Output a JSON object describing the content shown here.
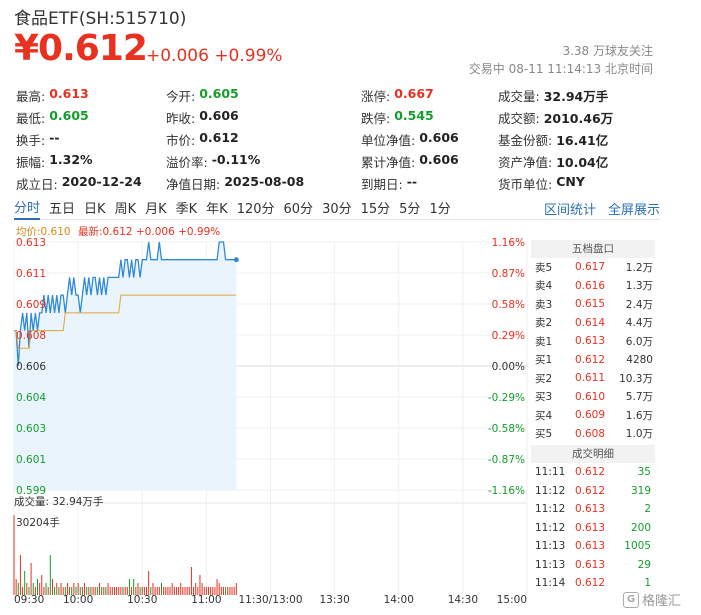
{
  "header": {
    "title": "食品ETF(SH:515710)",
    "price": "¥0.612",
    "change": "+0.006 +0.99%",
    "followers": "3.38 万球友关注",
    "status": "交易中 08-11 11:14:13 北京时间"
  },
  "stats": [
    [
      {
        "k": "最高:",
        "v": "0.613",
        "c": "red"
      },
      {
        "k": "今开:",
        "v": "0.605",
        "c": "green"
      },
      {
        "k": "涨停:",
        "v": "0.667",
        "c": "red"
      },
      {
        "k": "成交量:",
        "v": "32.94万手",
        "c": ""
      }
    ],
    [
      {
        "k": "最低:",
        "v": "0.605",
        "c": "green"
      },
      {
        "k": "昨收:",
        "v": "0.606",
        "c": ""
      },
      {
        "k": "跌停:",
        "v": "0.545",
        "c": "green"
      },
      {
        "k": "成交额:",
        "v": "2010.46万",
        "c": ""
      }
    ],
    [
      {
        "k": "换手:",
        "v": "--",
        "c": ""
      },
      {
        "k": "市价:",
        "v": "0.612",
        "c": ""
      },
      {
        "k": "单位净值:",
        "v": "0.606",
        "c": ""
      },
      {
        "k": "基金份额:",
        "v": "16.41亿",
        "c": ""
      }
    ],
    [
      {
        "k": "振幅:",
        "v": "1.32%",
        "c": ""
      },
      {
        "k": "溢价率:",
        "v": "-0.11%",
        "c": ""
      },
      {
        "k": "累计净值:",
        "v": "0.606",
        "c": ""
      },
      {
        "k": "资产净值:",
        "v": "10.04亿",
        "c": ""
      }
    ],
    [
      {
        "k": "成立日:",
        "v": "2020-12-24",
        "c": ""
      },
      {
        "k": "净值日期:",
        "v": "2025-08-08",
        "c": ""
      },
      {
        "k": "到期日:",
        "v": "--",
        "c": ""
      },
      {
        "k": "货币单位:",
        "v": "CNY",
        "c": ""
      }
    ]
  ],
  "tabs": [
    "分时",
    "五日",
    "日K",
    "周K",
    "月K",
    "季K",
    "年K",
    "120分",
    "60分",
    "30分",
    "15分",
    "5分",
    "1分"
  ],
  "tab_links": [
    "区间统计",
    "全屏展示"
  ],
  "legend": {
    "avg": "均价:0.610",
    "latest": "最新:0.612 +0.006 +0.99%"
  },
  "chart_data": {
    "type": "line",
    "y_ticks": [
      "0.613",
      "0.611",
      "0.609",
      "0.608",
      "0.606",
      "0.604",
      "0.603",
      "0.601",
      "0.599"
    ],
    "pct_ticks": [
      "1.16%",
      "0.87%",
      "0.58%",
      "0.29%",
      "0.00%",
      "-0.29%",
      "-0.58%",
      "-0.87%",
      "-1.16%"
    ],
    "ylim": [
      0.599,
      0.613
    ],
    "prev_close": 0.606,
    "x_ticks": [
      "09:30",
      "10:00",
      "10:30",
      "11:00",
      "11:30/13:00",
      "13:30",
      "14:00",
      "14:30",
      "15:00"
    ],
    "series": [
      {
        "values": [
          0.608,
          0.608,
          0.606,
          0.608,
          0.609,
          0.608,
          0.609,
          0.607,
          0.609,
          0.608,
          0.609,
          0.608,
          0.609,
          0.609,
          0.61,
          0.609,
          0.61,
          0.609,
          0.61,
          0.609,
          0.61,
          0.609,
          0.61,
          0.61,
          0.609,
          0.61,
          0.611,
          0.61,
          0.611,
          0.61,
          0.61,
          0.609,
          0.61,
          0.611,
          0.61,
          0.611,
          0.61,
          0.611,
          0.611,
          0.61,
          0.611,
          0.61,
          0.611,
          0.61,
          0.611,
          0.611,
          0.611,
          0.611,
          0.611,
          0.611,
          0.612,
          0.611,
          0.612,
          0.612,
          0.611,
          0.612,
          0.611,
          0.612,
          0.612,
          0.611,
          0.612,
          0.612,
          0.612,
          0.613,
          0.612,
          0.612,
          0.612,
          0.612,
          0.613,
          0.612,
          0.612,
          0.612,
          0.612,
          0.612,
          0.612,
          0.612,
          0.612,
          0.612,
          0.612,
          0.612,
          0.612,
          0.612,
          0.612,
          0.612,
          0.612,
          0.612,
          0.612,
          0.612,
          0.612,
          0.612,
          0.612,
          0.612,
          0.612,
          0.612,
          0.612,
          0.612,
          0.613,
          0.613,
          0.613,
          0.612,
          0.612,
          0.612,
          0.612,
          0.612,
          0.612
        ]
      },
      {
        "values": [
          0.608,
          0.608,
          0.607,
          0.607,
          0.607,
          0.607,
          0.607,
          0.607,
          0.608,
          0.608,
          0.608,
          0.608,
          0.608,
          0.608,
          0.608,
          0.608,
          0.608,
          0.608,
          0.608,
          0.608,
          0.608,
          0.608,
          0.608,
          0.608,
          0.609,
          0.609,
          0.609,
          0.609,
          0.609,
          0.609,
          0.609,
          0.609,
          0.609,
          0.609,
          0.609,
          0.609,
          0.609,
          0.609,
          0.609,
          0.609,
          0.609,
          0.609,
          0.609,
          0.609,
          0.609,
          0.609,
          0.609,
          0.609,
          0.609,
          0.609,
          0.61,
          0.61,
          0.61,
          0.61,
          0.61,
          0.61,
          0.61,
          0.61,
          0.61,
          0.61,
          0.61,
          0.61,
          0.61,
          0.61,
          0.61,
          0.61,
          0.61,
          0.61,
          0.61,
          0.61,
          0.61,
          0.61,
          0.61,
          0.61,
          0.61,
          0.61,
          0.61,
          0.61,
          0.61,
          0.61,
          0.61,
          0.61,
          0.61,
          0.61,
          0.61,
          0.61,
          0.61,
          0.61,
          0.61,
          0.61,
          0.61,
          0.61,
          0.61,
          0.61,
          0.61,
          0.61,
          0.61,
          0.61,
          0.61,
          0.61,
          0.61,
          0.61,
          0.61,
          0.61,
          0.61
        ]
      },
      {
        "values": [
          20,
          4,
          3,
          10,
          2,
          6,
          3,
          2,
          8,
          3,
          2,
          4,
          3,
          5,
          2,
          3,
          2,
          10,
          4,
          2,
          3,
          2,
          3,
          2,
          2,
          3,
          2,
          2,
          3,
          2,
          3,
          2,
          2,
          3,
          2,
          2,
          2,
          2,
          2,
          2,
          3,
          2,
          2,
          2,
          3,
          2,
          2,
          2,
          2,
          2,
          2,
          2,
          2,
          2,
          4,
          2,
          4,
          2,
          3,
          2,
          2,
          2,
          2,
          6,
          2,
          3,
          2,
          2,
          2,
          3,
          2,
          2,
          2,
          2,
          3,
          2,
          2,
          2,
          3,
          2,
          2,
          2,
          2,
          7,
          2,
          3,
          2,
          5,
          3,
          2,
          2,
          2,
          2,
          2,
          2,
          4,
          3,
          2,
          2,
          2,
          2,
          2,
          2,
          2,
          3
        ]
      }
    ]
  },
  "volume": {
    "label": "成交量: 32.94万手",
    "max": "30204手"
  },
  "orderbook": {
    "title": "五档盘口",
    "rows": [
      {
        "lab": "卖5",
        "pr": "0.617",
        "qt": "1.2万"
      },
      {
        "lab": "卖4",
        "pr": "0.616",
        "qt": "1.3万"
      },
      {
        "lab": "卖3",
        "pr": "0.615",
        "qt": "2.4万"
      },
      {
        "lab": "卖2",
        "pr": "0.614",
        "qt": "4.4万"
      },
      {
        "lab": "卖1",
        "pr": "0.613",
        "qt": "6.0万"
      },
      {
        "lab": "买1",
        "pr": "0.612",
        "qt": "4280"
      },
      {
        "lab": "买2",
        "pr": "0.611",
        "qt": "10.3万"
      },
      {
        "lab": "买3",
        "pr": "0.610",
        "qt": "5.7万"
      },
      {
        "lab": "买4",
        "pr": "0.609",
        "qt": "1.6万"
      },
      {
        "lab": "买5",
        "pr": "0.608",
        "qt": "1.0万"
      }
    ],
    "trades_title": "成交明细",
    "trades": [
      {
        "t": "11:11",
        "p": "0.612",
        "q": "35"
      },
      {
        "t": "11:12",
        "p": "0.612",
        "q": "319"
      },
      {
        "t": "11:12",
        "p": "0.613",
        "q": "2"
      },
      {
        "t": "11:12",
        "p": "0.613",
        "q": "200"
      },
      {
        "t": "11:13",
        "p": "0.613",
        "q": "1005"
      },
      {
        "t": "11:13",
        "p": "0.613",
        "q": "29"
      },
      {
        "t": "11:14",
        "p": "0.612",
        "q": "1"
      }
    ]
  },
  "watermark": "格隆汇",
  "watermark_logo": "G",
  "colors": {
    "up": "#e8311f",
    "down": "#139e2b",
    "line": "#2f8ad8",
    "avg": "#e0a33c",
    "link": "#2f6fb3"
  }
}
